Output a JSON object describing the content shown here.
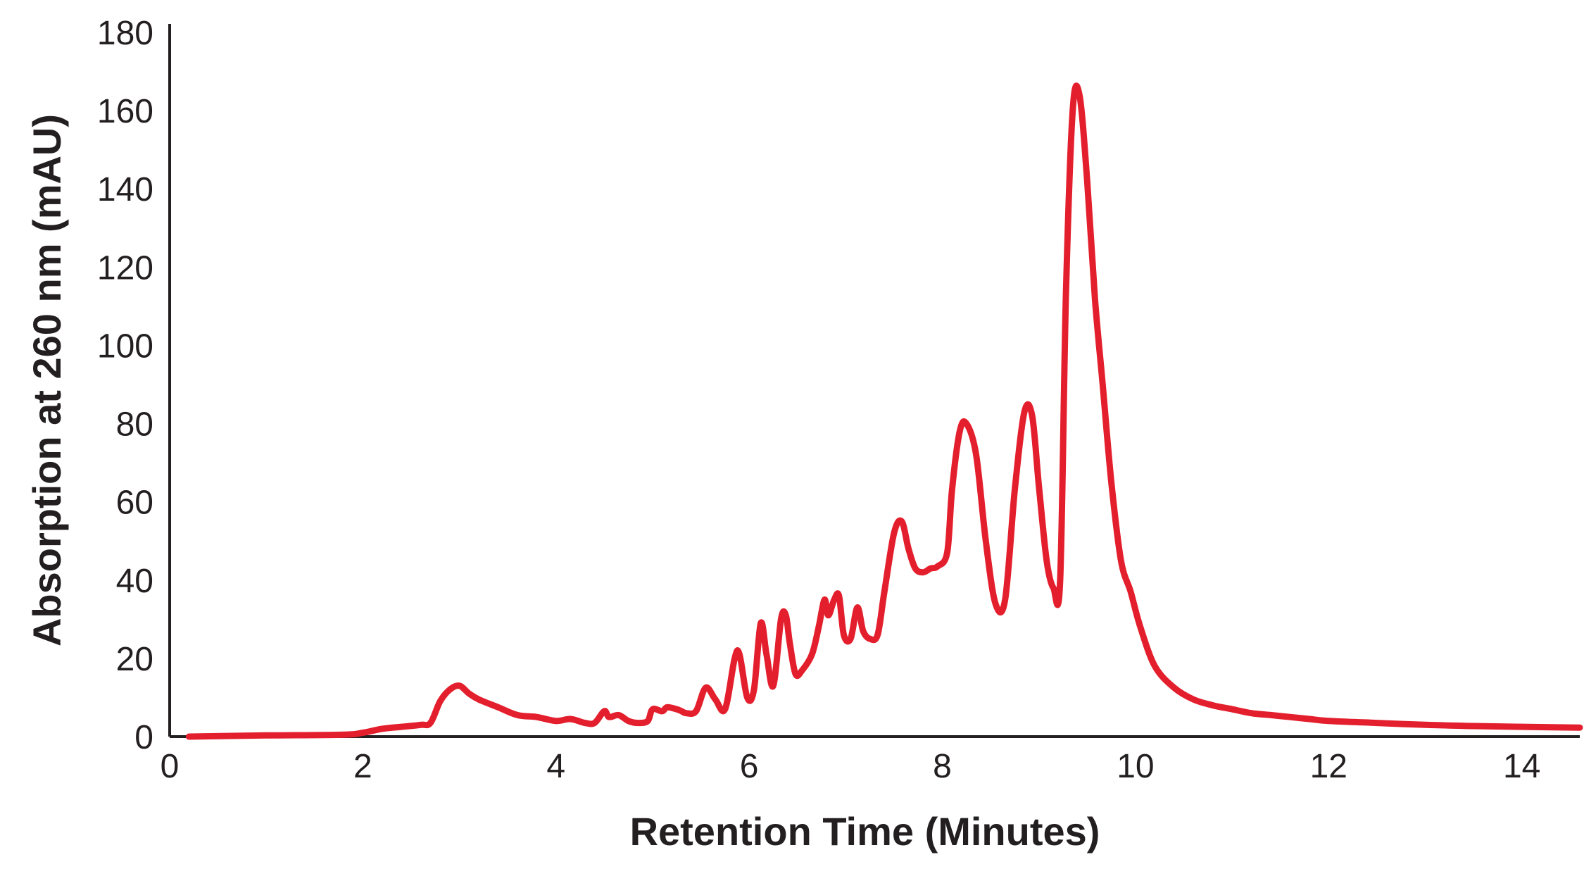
{
  "chart_data": {
    "type": "line",
    "title": "",
    "xlabel": "Retention Time (Minutes)",
    "ylabel": "Absorption at 260 nm (mAU)",
    "xlim": [
      0,
      14.6
    ],
    "ylim": [
      0,
      180
    ],
    "x_ticks": [
      0,
      2,
      4,
      6,
      8,
      10,
      12,
      14
    ],
    "y_ticks": [
      0,
      20,
      40,
      60,
      80,
      100,
      120,
      140,
      160,
      180
    ],
    "grid": false,
    "legend": "none",
    "series": [
      {
        "color": "#e41f2d",
        "x": [
          0.2,
          1.0,
          1.8,
          2.0,
          2.2,
          2.4,
          2.6,
          2.7,
          2.8,
          2.9,
          3.0,
          3.1,
          3.2,
          3.4,
          3.6,
          3.8,
          4.0,
          4.15,
          4.3,
          4.4,
          4.5,
          4.55,
          4.65,
          4.75,
          4.85,
          4.95,
          5.0,
          5.1,
          5.15,
          5.25,
          5.3,
          5.35,
          5.45,
          5.55,
          5.65,
          5.75,
          5.85,
          5.9,
          5.98,
          6.05,
          6.12,
          6.18,
          6.25,
          6.33,
          6.38,
          6.42,
          6.48,
          6.55,
          6.65,
          6.72,
          6.78,
          6.82,
          6.88,
          6.93,
          6.98,
          7.05,
          7.12,
          7.18,
          7.25,
          7.33,
          7.4,
          7.5,
          7.58,
          7.65,
          7.72,
          7.8,
          7.88,
          7.95,
          8.05,
          8.1,
          8.18,
          8.25,
          8.35,
          8.45,
          8.55,
          8.65,
          8.75,
          8.85,
          8.93,
          9.0,
          9.08,
          9.15,
          9.22,
          9.28,
          9.35,
          9.42,
          9.5,
          9.58,
          9.66,
          9.75,
          9.85,
          9.95,
          10.05,
          10.2,
          10.4,
          10.6,
          10.8,
          11.0,
          11.2,
          11.4,
          11.6,
          11.8,
          12.0,
          12.5,
          13.0,
          13.5,
          14.0,
          14.6
        ],
        "y": [
          0,
          0.3,
          0.5,
          1,
          2,
          2.5,
          3,
          3.5,
          9,
          12,
          13,
          11,
          9.5,
          7.5,
          5.5,
          5,
          4,
          4.5,
          3.5,
          3.5,
          6.5,
          5,
          5.5,
          4,
          3.5,
          4,
          7,
          6.5,
          7.5,
          7,
          6.5,
          6,
          6.5,
          12.5,
          9.5,
          7,
          20,
          21,
          10,
          12,
          29,
          21,
          13,
          30,
          31,
          24,
          16,
          17,
          21,
          28,
          35,
          31,
          35,
          36,
          26,
          25,
          33,
          27,
          25,
          26,
          37,
          52,
          55,
          48,
          43,
          42,
          43,
          43.5,
          47,
          63,
          78,
          80,
          72,
          50,
          34,
          35,
          63,
          83,
          82,
          64,
          45,
          38,
          40,
          113,
          160,
          164,
          142,
          112,
          90,
          65,
          45,
          37,
          28,
          18,
          12.5,
          9.5,
          8,
          7,
          6,
          5.5,
          5,
          4.5,
          4,
          3.5,
          3,
          2.7,
          2.5,
          2.3
        ]
      }
    ]
  }
}
